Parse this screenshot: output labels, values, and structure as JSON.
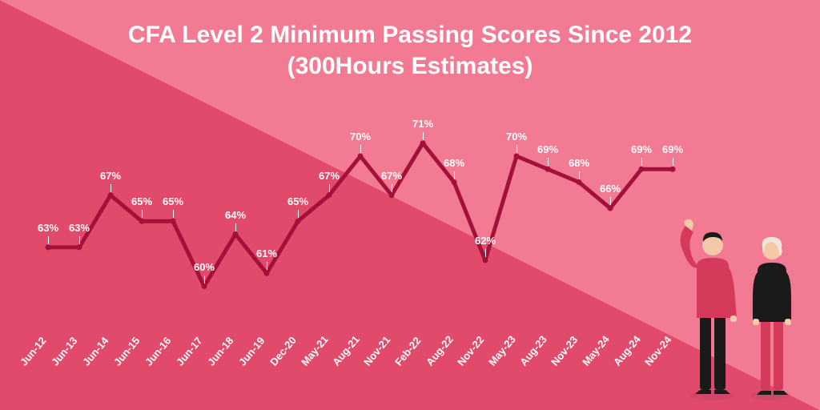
{
  "title_line1": "CFA Level 2 Minimum Passing Scores Since 2012",
  "title_line2": "(300Hours Estimates)",
  "chart": {
    "type": "line",
    "background_color_left": "#e24a6b",
    "background_color_right": "#f27a93",
    "line_color": "#a3113a",
    "line_width": 5,
    "marker_style": "circle",
    "marker_size": 7,
    "marker_fill": "#a3113a",
    "label_color": "#ffffff",
    "label_fontsize": 13,
    "title_color": "#ffffff",
    "title_fontsize": 30,
    "ylim": [
      58,
      74
    ],
    "x_labels": [
      "Jun-12",
      "Jun-13",
      "Jun-14",
      "Jun-15",
      "Jun-16",
      "Jun-17",
      "Jun-18",
      "Jun-19",
      "Dec-20",
      "May-21",
      "Aug-21",
      "Nov-21",
      "Feb-22",
      "Aug-22",
      "Nov-22",
      "May-23",
      "Aug-23",
      "Nov-23",
      "May-24",
      "Aug-24",
      "Nov-24"
    ],
    "values": [
      63,
      63,
      67,
      65,
      65,
      60,
      64,
      61,
      65,
      67,
      70,
      67,
      71,
      68,
      62,
      70,
      69,
      68,
      66,
      69,
      69
    ],
    "value_labels": [
      "63%",
      "63%",
      "67%",
      "65%",
      "65%",
      "60%",
      "64%",
      "61%",
      "65%",
      "67%",
      "70%",
      "67%",
      "71%",
      "68%",
      "62%",
      "70%",
      "69%",
      "68%",
      "66%",
      "69%",
      "69%"
    ]
  },
  "illustration": {
    "person1_jacket": "#d63a5a",
    "person1_pants": "#1a1a1a",
    "person1_hair": "#1a1a1a",
    "person2_top": "#1a1a1a",
    "person2_pants": "#d63a5a",
    "person2_hair": "#f0e6d8",
    "shadow_color": "#d14868"
  }
}
